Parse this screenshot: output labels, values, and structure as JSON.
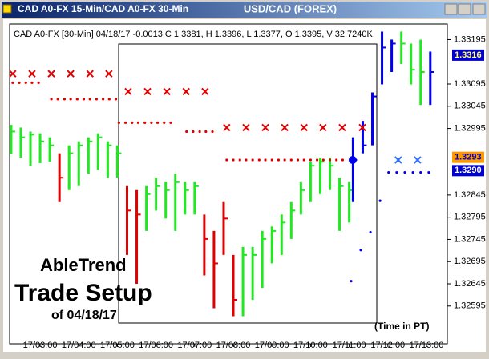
{
  "chart_data": {
    "type": "ohlc",
    "window_title": "CAD A0-FX 15-Min/CAD A0-FX 30-Min",
    "title": "USD/CAD (FOREX)",
    "info": "CAD A0-FX [30-Min] 04/18/17  -0.0013 C 1.3381, H 1.3396, L 1.3377, O 1.3395, V 32.7240K",
    "annotations": [
      "AbleTrend",
      "Trade Setup",
      "of 04/18/17"
    ],
    "x_label": "(Time in PT)",
    "x": [
      2.25,
      2.5,
      2.75,
      3,
      3.25,
      3.5,
      3.75,
      4,
      4.25,
      4.5,
      4.75,
      5,
      5.25,
      5.5,
      5.75,
      6,
      6.25,
      6.5,
      6.75,
      7,
      7.25,
      7.5,
      7.75,
      8,
      8.25,
      8.5,
      8.75,
      9,
      9.25,
      9.5,
      9.75,
      10,
      10.25,
      10.5,
      10.75,
      11,
      11.1,
      11.35,
      11.6,
      11.85,
      12.1,
      12.35,
      12.6,
      12.85,
      13.1
    ],
    "high": [
      1.33003,
      1.32997,
      1.32988,
      1.32984,
      1.32975,
      1.32939,
      1.32957,
      1.32966,
      1.32975,
      1.32984,
      1.32966,
      1.32957,
      1.32865,
      1.32856,
      1.32865,
      1.32884,
      1.32874,
      1.32893,
      1.32874,
      1.32874,
      1.32801,
      1.32764,
      1.32829,
      1.3271,
      1.32728,
      1.32728,
      1.32764,
      1.32774,
      1.32801,
      1.32829,
      1.32874,
      1.3292,
      1.32929,
      1.32929,
      1.32884,
      1.32874,
      1.32975,
      1.33012,
      1.33076,
      1.33213,
      1.33195,
      1.33213,
      1.33186,
      1.33195,
      1.33168
    ],
    "low": [
      1.32937,
      1.32929,
      1.32911,
      1.32917,
      1.3292,
      1.32829,
      1.32856,
      1.32865,
      1.32893,
      1.32902,
      1.32884,
      1.32884,
      1.3271,
      1.32645,
      1.32764,
      1.3281,
      1.32792,
      1.32764,
      1.32801,
      1.32801,
      1.32664,
      1.3259,
      1.3271,
      1.32572,
      1.32572,
      1.32609,
      1.32636,
      1.32691,
      1.3271,
      1.32746,
      1.32801,
      1.32829,
      1.32847,
      1.32856,
      1.32764,
      1.32783,
      1.32829,
      1.32939,
      1.32957,
      1.33094,
      1.33122,
      1.3314,
      1.33094,
      1.33048,
      1.33048
    ],
    "close": [
      1.32988,
      1.32975,
      1.32981,
      1.32966,
      1.32957,
      1.32884,
      1.32939,
      1.32957,
      1.32966,
      1.32975,
      1.32957,
      1.32939,
      1.3281,
      1.32801,
      1.32847,
      1.32865,
      1.32856,
      1.32874,
      1.32856,
      1.32865,
      1.32746,
      1.32691,
      1.32792,
      1.32609,
      1.3271,
      1.3271,
      1.32746,
      1.32764,
      1.32783,
      1.3281,
      1.32856,
      1.32911,
      1.3292,
      1.32911,
      1.32865,
      1.32856,
      1.32924,
      1.32957,
      1.33067,
      1.33177,
      1.33186,
      1.33186,
      1.33127,
      1.33122,
      1.33122
    ],
    "colors": [
      "#22e822",
      "#22e822",
      "#22e822",
      "#22e822",
      "#22e822",
      "#e00000",
      "#22e822",
      "#22e822",
      "#22e822",
      "#22e822",
      "#22e822",
      "#22e822",
      "#e00000",
      "#e00000",
      "#22e822",
      "#22e822",
      "#22e822",
      "#22e822",
      "#22e822",
      "#22e822",
      "#e00000",
      "#e00000",
      "#e00000",
      "#e00000",
      "#22e822",
      "#22e822",
      "#22e822",
      "#22e822",
      "#22e822",
      "#22e822",
      "#22e822",
      "#22e822",
      "#22e822",
      "#22e822",
      "#22e822",
      "#22e822",
      "#0000ee",
      "#0000ee",
      "#0000ee",
      "#0000ee",
      "#0000ee",
      "#22e822",
      "#22e822",
      "#22e822",
      "#0000ee"
    ],
    "markers": [
      {
        "marker": "x",
        "color": "#e00000",
        "x": [
          2.29,
          2.79,
          3.29,
          3.79,
          4.29,
          4.78,
          5.28,
          5.78,
          6.28,
          6.78,
          7.27,
          7.83,
          8.33,
          8.83,
          9.33,
          9.83,
          10.32,
          10.82,
          11.34
        ],
        "values": [
          1.33118,
          1.33118,
          1.33118,
          1.33118,
          1.33118,
          1.33118,
          1.33078,
          1.33078,
          1.33078,
          1.33078,
          1.33078,
          1.32997,
          1.32997,
          1.32997,
          1.32997,
          1.32997,
          1.32997,
          1.32997,
          1.32997
        ]
      },
      {
        "marker": "dot",
        "color": "#e00000",
        "x": [
          2.29,
          2.46,
          2.63,
          2.79,
          2.96,
          3.29,
          3.46,
          3.63,
          3.79,
          3.96,
          4.13,
          4.29,
          4.46,
          4.63,
          4.79,
          4.96,
          5.04,
          5.21,
          5.38,
          5.54,
          5.71,
          5.88,
          6.04,
          6.21,
          6.38,
          6.79,
          6.96,
          7.13,
          7.29,
          7.46,
          7.83,
          8.0,
          8.17,
          8.33,
          8.5,
          8.67,
          8.83,
          9.0,
          9.17,
          9.33,
          9.5,
          9.67,
          9.83,
          10.0,
          10.17,
          10.33,
          10.5,
          10.67,
          10.83
        ],
        "values": [
          1.33098,
          1.33098,
          1.33098,
          1.33098,
          1.33098,
          1.33061,
          1.33061,
          1.33061,
          1.33061,
          1.33061,
          1.33061,
          1.33061,
          1.33061,
          1.33061,
          1.33061,
          1.33061,
          1.33008,
          1.33008,
          1.33008,
          1.33008,
          1.33008,
          1.33008,
          1.33008,
          1.33008,
          1.33008,
          1.32988,
          1.32988,
          1.32988,
          1.32988,
          1.32988,
          1.32924,
          1.32924,
          1.32924,
          1.32924,
          1.32924,
          1.32924,
          1.32924,
          1.32924,
          1.32924,
          1.32924,
          1.32924,
          1.32924,
          1.32924,
          1.32924,
          1.32924,
          1.32924,
          1.32924,
          1.32924,
          1.32924
        ]
      },
      {
        "marker": "dot",
        "color": "#0000ee",
        "x": [
          11.05,
          11.3,
          11.55,
          11.8,
          12.02,
          12.23,
          12.44,
          12.65,
          12.85,
          13.06
        ],
        "values": [
          1.32651,
          1.32721,
          1.32761,
          1.32832,
          1.32896,
          1.32896,
          1.32896,
          1.32896,
          1.32896,
          1.32896
        ]
      },
      {
        "marker": "big-dot",
        "color": "#0000ee",
        "x": [
          11.09
        ],
        "values": [
          1.32924
        ]
      },
      {
        "marker": "x",
        "color": "#3070ff",
        "x": [
          12.27,
          12.77
        ],
        "values": [
          1.32924,
          1.32924
        ]
      }
    ],
    "price_labels": [
      {
        "value": 1.3316,
        "label": "1.3316",
        "color": "#0000cc",
        "text_color": "#ffff66"
      },
      {
        "value": 1.3293,
        "label": "1.3293",
        "color": "#ff9900",
        "text_color": "#0000cc"
      },
      {
        "value": 1.329,
        "label": "1.3290",
        "color": "#0000cc",
        "text_color": "#ffffff"
      }
    ],
    "xlim": [
      2.21,
      13.54
    ],
    "ylim": [
      1.3251,
      1.3323
    ],
    "xticks": [
      {
        "value": 3,
        "label": "17/03:00"
      },
      {
        "value": 4,
        "label": "17/04:00"
      },
      {
        "value": 5,
        "label": "17/05:00"
      },
      {
        "value": 6,
        "label": "17/06:00"
      },
      {
        "value": 7,
        "label": "17/07:00"
      },
      {
        "value": 8,
        "label": "17/08:00"
      },
      {
        "value": 9,
        "label": "17/09:00"
      },
      {
        "value": 10,
        "label": "17/10:00"
      },
      {
        "value": 11,
        "label": "17/11:00"
      },
      {
        "value": 12,
        "label": "17/12:00"
      },
      {
        "value": 13,
        "label": "17/13:00"
      }
    ],
    "yticks": [
      1.33195,
      1.33095,
      1.33045,
      1.32995,
      1.32845,
      1.32795,
      1.32745,
      1.32695,
      1.32645,
      1.32595
    ]
  }
}
